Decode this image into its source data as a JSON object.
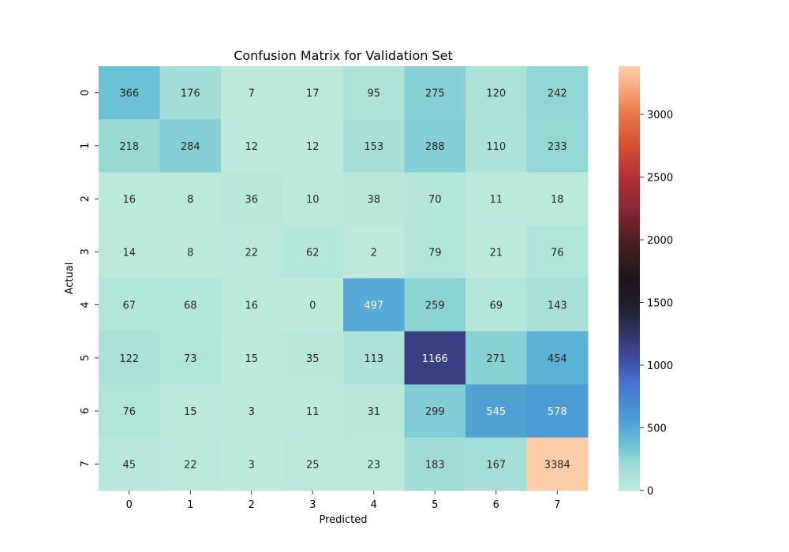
{
  "chart_data": {
    "type": "heatmap",
    "title": "Confusion Matrix for Validation Set",
    "xlabel": "Predicted",
    "ylabel": "Actual",
    "x_categories": [
      "0",
      "1",
      "2",
      "3",
      "4",
      "5",
      "6",
      "7"
    ],
    "y_categories": [
      "0",
      "1",
      "2",
      "3",
      "4",
      "5",
      "6",
      "7"
    ],
    "values": [
      [
        366,
        176,
        7,
        17,
        95,
        275,
        120,
        242
      ],
      [
        218,
        284,
        12,
        12,
        153,
        288,
        110,
        233
      ],
      [
        16,
        8,
        36,
        10,
        38,
        70,
        11,
        18
      ],
      [
        14,
        8,
        22,
        62,
        2,
        79,
        21,
        76
      ],
      [
        67,
        68,
        16,
        0,
        497,
        259,
        69,
        143
      ],
      [
        122,
        73,
        15,
        35,
        113,
        1166,
        271,
        454
      ],
      [
        76,
        15,
        3,
        11,
        31,
        299,
        545,
        578
      ],
      [
        45,
        22,
        3,
        25,
        23,
        183,
        167,
        3384
      ]
    ],
    "colormap": "icefire",
    "color_range": [
      0,
      3384
    ],
    "colorbar_ticks": [
      "0",
      "500",
      "1000",
      "1500",
      "2000",
      "2500",
      "3000"
    ],
    "annotations": true,
    "grid": false
  }
}
